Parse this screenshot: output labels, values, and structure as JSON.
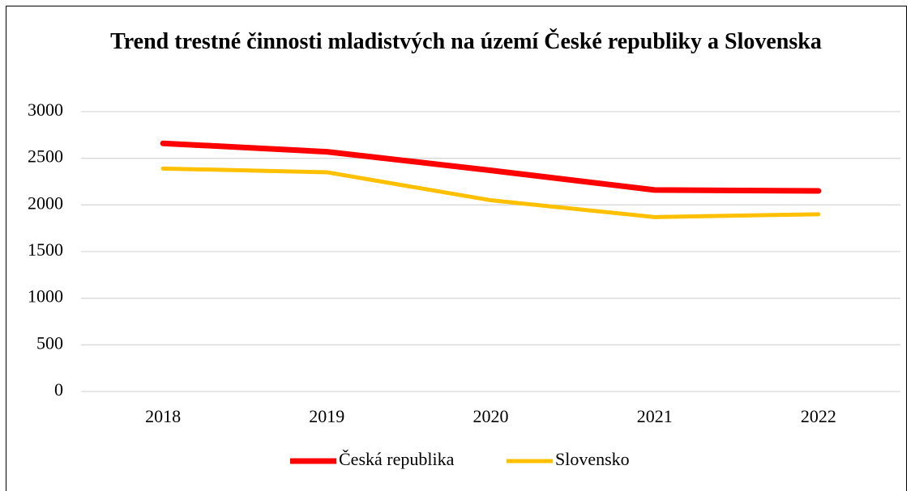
{
  "chart_data": {
    "type": "line",
    "title": "Trend trestné činnosti mladistvých na území České republiky a Slovenska",
    "categories": [
      "2018",
      "2019",
      "2020",
      "2021",
      "2022"
    ],
    "series": [
      {
        "name": "Česká republika",
        "color": "#ff0000",
        "values": [
          2660,
          2570,
          2370,
          2160,
          2150
        ]
      },
      {
        "name": "Slovensko",
        "color": "#ffc000",
        "values": [
          2390,
          2350,
          2050,
          1870,
          1900
        ]
      }
    ],
    "ylim": [
      0,
      3000
    ],
    "yticks": [
      0,
      500,
      1000,
      1500,
      2000,
      2500,
      3000
    ],
    "grid": true,
    "legend": "bottom"
  }
}
